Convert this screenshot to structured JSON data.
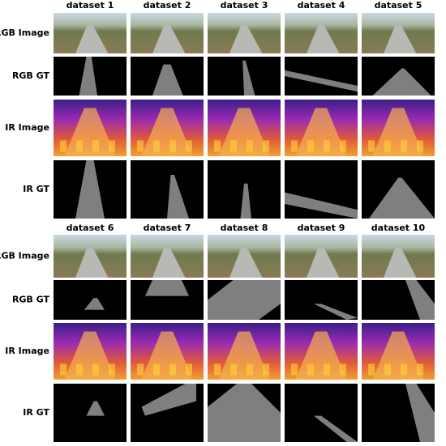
{
  "blocks": [
    {
      "columns": [
        "dataset 1",
        "dataset 2",
        "dataset 3",
        "dataset 4",
        "dataset 5"
      ],
      "rows": [
        "RGB Image",
        "RGB GT",
        "IR Image",
        "IR GT"
      ]
    },
    {
      "columns": [
        "dataset 6",
        "dataset 7",
        "dataset 8",
        "dataset 9",
        "dataset 10"
      ],
      "rows": [
        "RGB Image",
        "RGB GT",
        "IR Image",
        "IR GT"
      ]
    }
  ]
}
